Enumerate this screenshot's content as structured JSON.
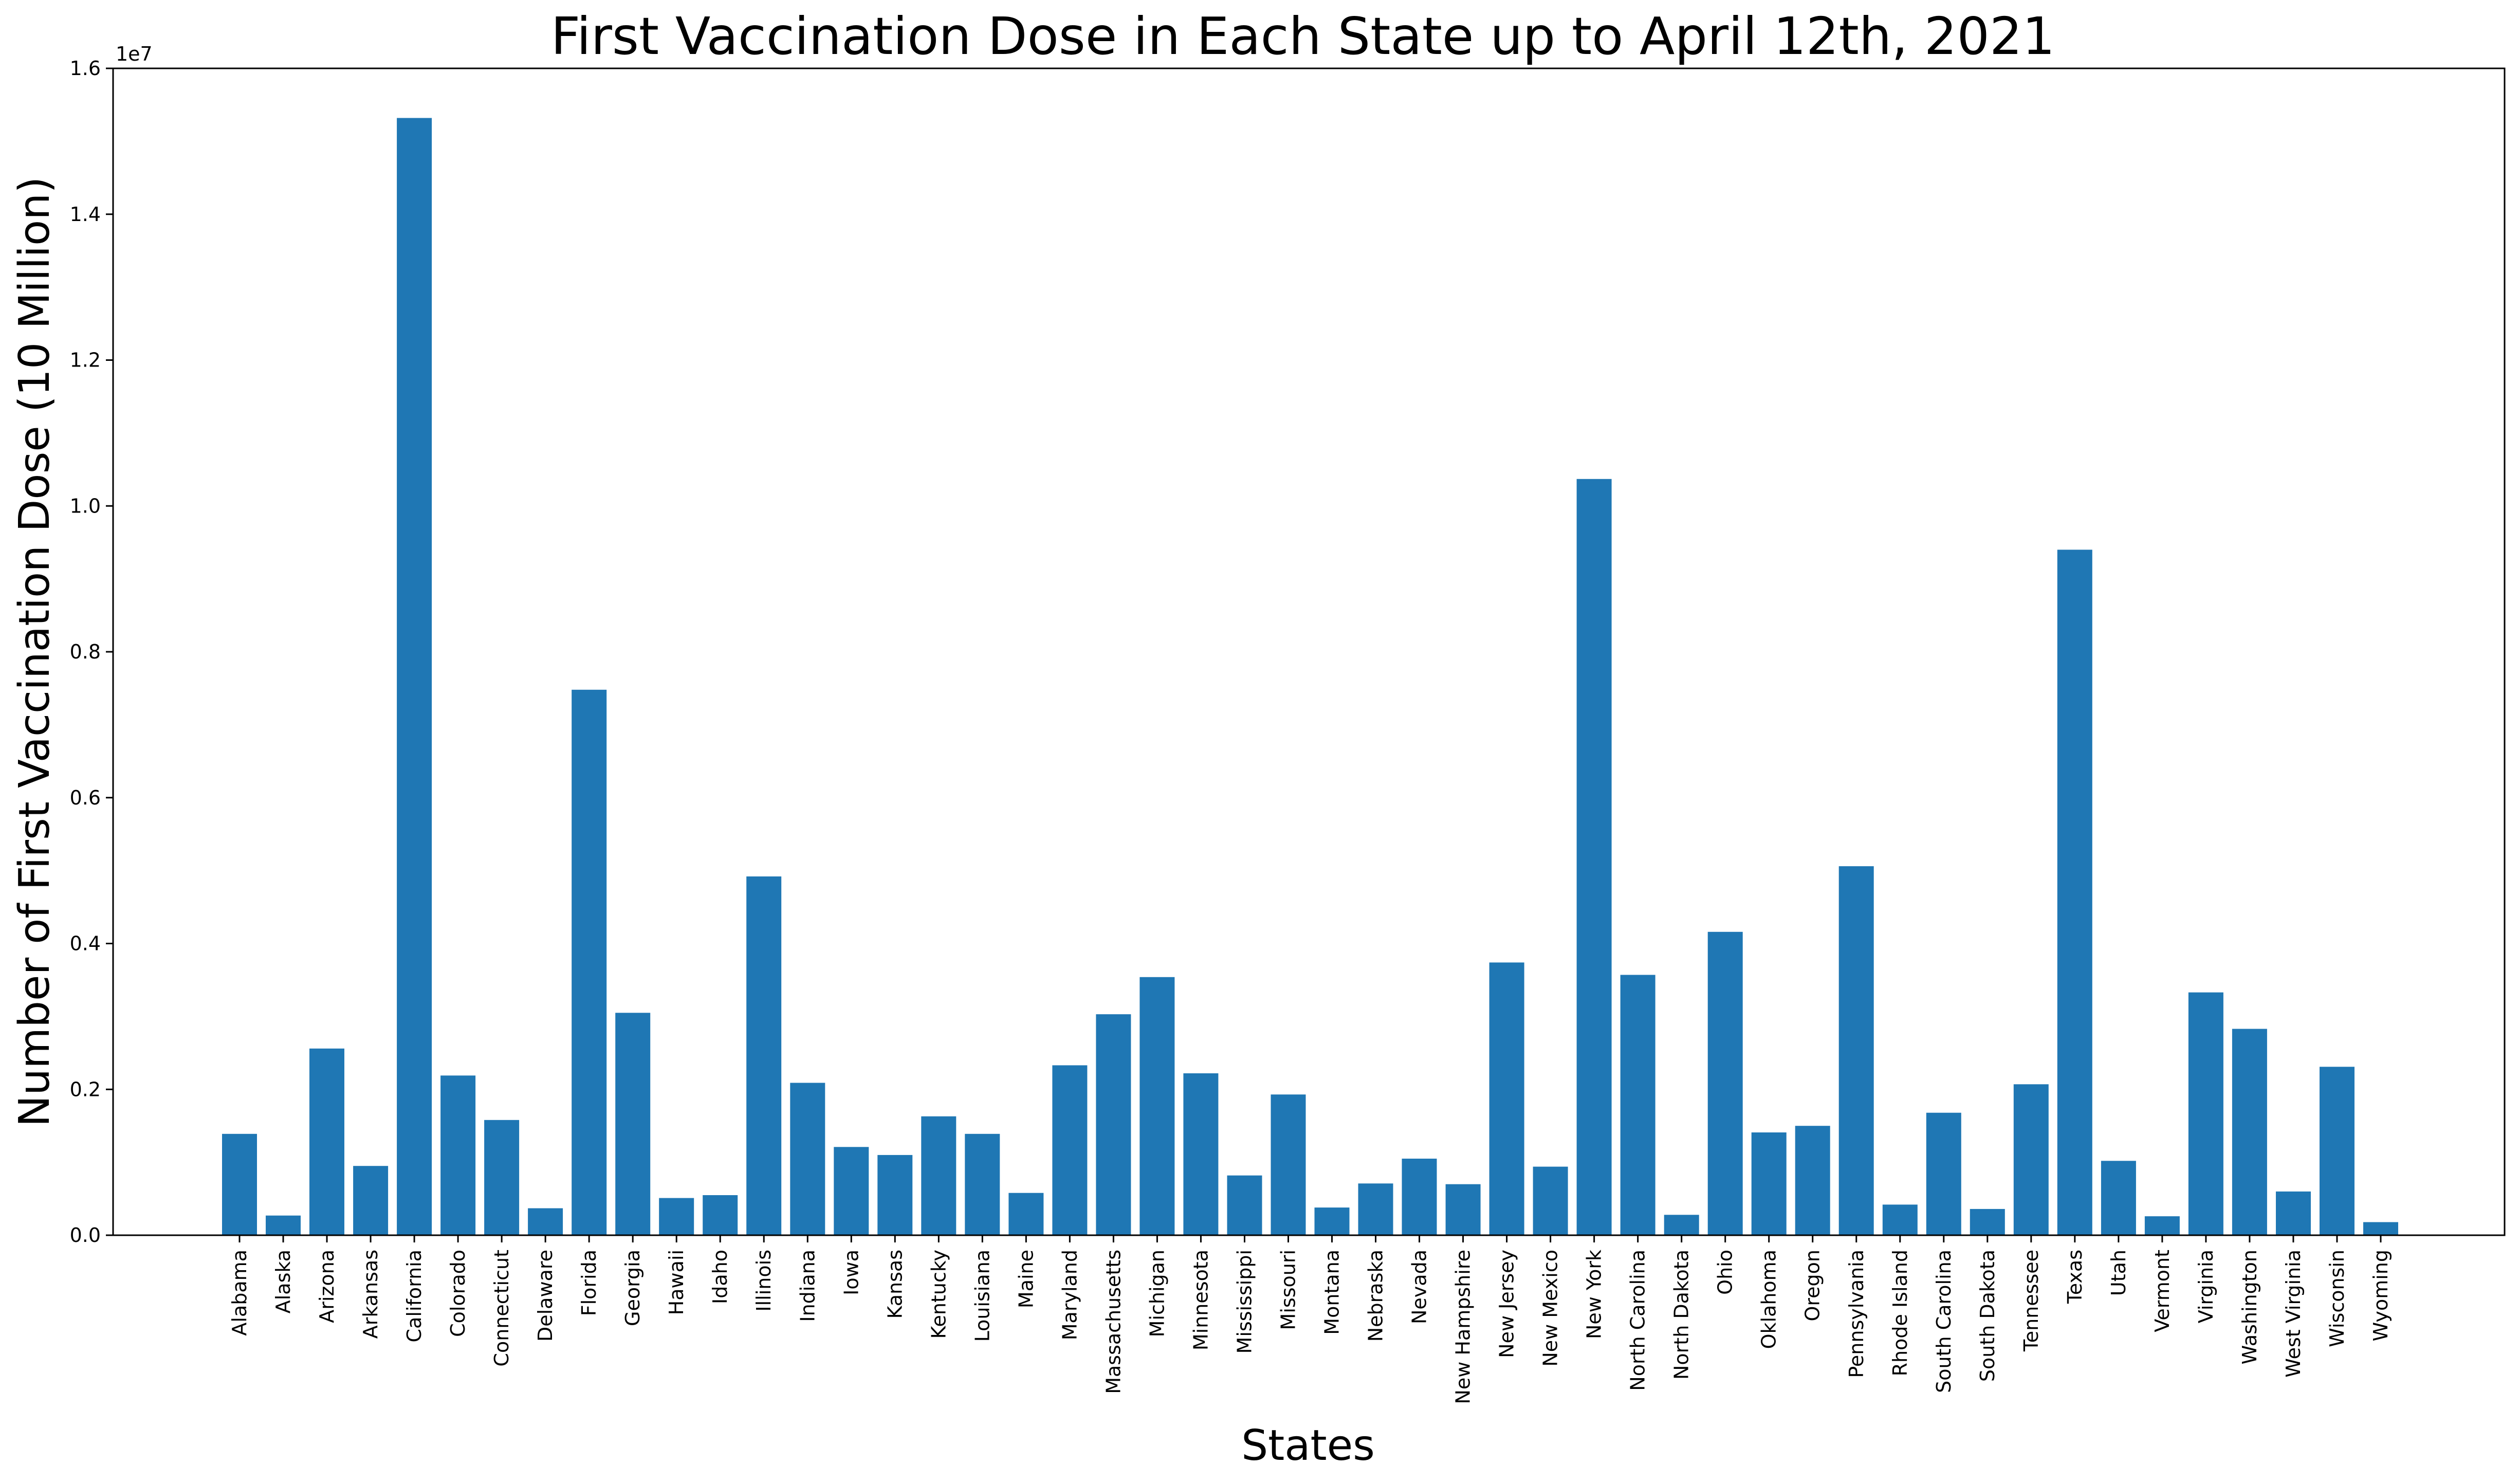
{
  "chart_data": {
    "type": "bar",
    "title": "First Vaccination Dose in Each State up to April 12th, 2021",
    "xlabel": "States",
    "ylabel": "Number of First Vaccination Dose (10 Million)",
    "y_offset_label": "1e7",
    "ylim": [
      0,
      1.6
    ],
    "y_ticks": [
      "0.0",
      "0.2",
      "0.4",
      "0.6",
      "0.8",
      "1.0",
      "1.2",
      "1.4",
      "1.6"
    ],
    "grid": false,
    "bar_color": "#1f77b4",
    "categories": [
      "Alabama",
      "Alaska",
      "Arizona",
      "Arkansas",
      "California",
      "Colorado",
      "Connecticut",
      "Delaware",
      "Florida",
      "Georgia",
      "Hawaii",
      "Idaho",
      "Illinois",
      "Indiana",
      "Iowa",
      "Kansas",
      "Kentucky",
      "Louisiana",
      "Maine",
      "Maryland",
      "Massachusetts",
      "Michigan",
      "Minnesota",
      "Mississippi",
      "Missouri",
      "Montana",
      "Nebraska",
      "Nevada",
      "New Hampshire",
      "New Jersey",
      "New Mexico",
      "New York",
      "North Carolina",
      "North Dakota",
      "Ohio",
      "Oklahoma",
      "Oregon",
      "Pennsylvania",
      "Rhode Island",
      "South Carolina",
      "South Dakota",
      "Tennessee",
      "Texas",
      "Utah",
      "Vermont",
      "Virginia",
      "Washington",
      "West Virginia",
      "Wisconsin",
      "Wyoming"
    ],
    "values": [
      0.139,
      0.027,
      0.256,
      0.095,
      1.532,
      0.219,
      0.158,
      0.037,
      0.748,
      0.305,
      0.051,
      0.055,
      0.492,
      0.209,
      0.121,
      0.11,
      0.163,
      0.139,
      0.058,
      0.233,
      0.303,
      0.354,
      0.222,
      0.082,
      0.193,
      0.038,
      0.071,
      0.105,
      0.07,
      0.374,
      0.094,
      1.037,
      0.357,
      0.028,
      0.416,
      0.141,
      0.15,
      0.506,
      0.042,
      0.168,
      0.036,
      0.207,
      0.94,
      0.102,
      0.026,
      0.333,
      0.283,
      0.06,
      0.231,
      0.018
    ]
  }
}
